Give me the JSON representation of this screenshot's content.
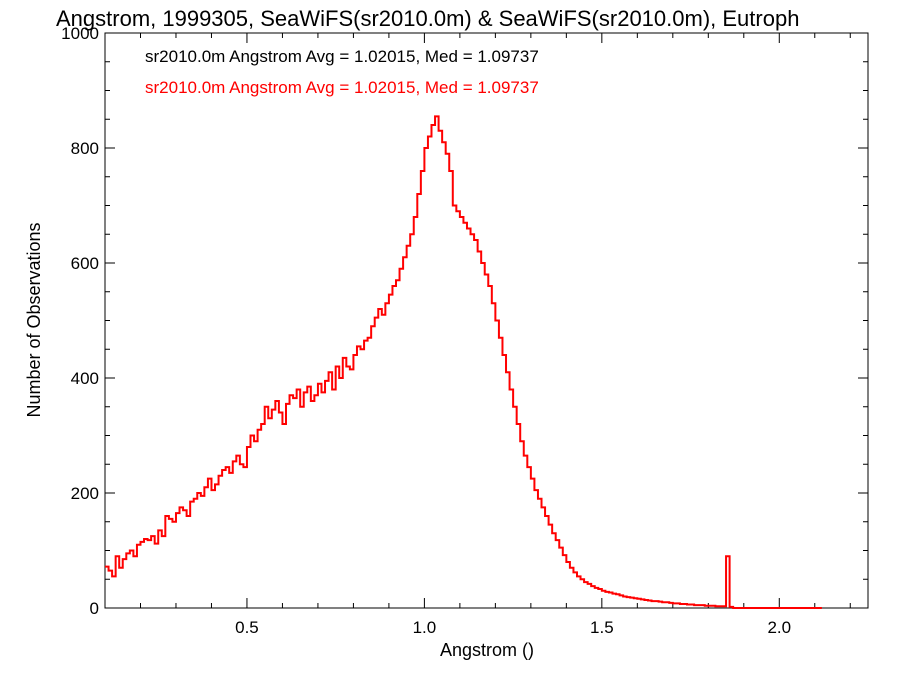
{
  "chart_data": {
    "type": "bar",
    "title": "Angstrom, 1999305, SeaWiFS(sr2010.0m) & SeaWiFS(sr2010.0m), Eutroph",
    "xlabel": "Angstrom ()",
    "ylabel": "Number of Observations",
    "xlim": [
      0.1,
      2.25
    ],
    "ylim": [
      0,
      1000
    ],
    "grid": false,
    "legend_position": "top-left",
    "x_ticks": [
      0.5,
      1.0,
      1.5,
      2.0
    ],
    "x_tick_labels": [
      "0.5",
      "1.0",
      "1.5",
      "2.0"
    ],
    "y_ticks": [
      0,
      200,
      400,
      600,
      800,
      1000
    ],
    "y_tick_labels": [
      "0",
      "200",
      "400",
      "600",
      "800",
      "1000"
    ],
    "bin_start": 0.1,
    "bin_width": 0.01,
    "legend": [
      {
        "text": "sr2010.0m Angstrom Avg = 1.02015, Med = 1.09737",
        "color": "#000000"
      },
      {
        "text": "sr2010.0m Angstrom Avg = 1.02015, Med = 1.09737",
        "color": "#ff0000"
      }
    ],
    "series": [
      {
        "color": "#ff0000",
        "values": [
          72,
          65,
          55,
          90,
          70,
          85,
          95,
          100,
          90,
          110,
          115,
          120,
          118,
          125,
          112,
          135,
          125,
          160,
          155,
          150,
          165,
          175,
          170,
          160,
          185,
          190,
          200,
          195,
          210,
          225,
          205,
          215,
          230,
          240,
          245,
          235,
          255,
          265,
          250,
          245,
          280,
          300,
          290,
          310,
          320,
          350,
          330,
          345,
          360,
          340,
          320,
          355,
          370,
          365,
          380,
          350,
          375,
          385,
          360,
          370,
          390,
          375,
          395,
          410,
          380,
          420,
          400,
          435,
          420,
          415,
          440,
          455,
          450,
          465,
          470,
          490,
          505,
          520,
          510,
          530,
          545,
          560,
          570,
          590,
          610,
          630,
          650,
          680,
          720,
          760,
          800,
          820,
          840,
          855,
          830,
          810,
          790,
          760,
          700,
          690,
          680,
          670,
          660,
          650,
          640,
          620,
          600,
          580,
          560,
          530,
          500,
          470,
          440,
          410,
          380,
          350,
          320,
          290,
          265,
          245,
          225,
          205,
          190,
          175,
          160,
          145,
          130,
          118,
          105,
          92,
          80,
          70,
          62,
          55,
          50,
          45,
          42,
          38,
          35,
          33,
          30,
          28,
          27,
          25,
          24,
          22,
          20,
          19,
          18,
          17,
          16,
          15,
          14,
          13,
          12,
          12,
          11,
          10,
          10,
          9,
          8,
          8,
          7,
          7,
          6,
          6,
          5,
          5,
          5,
          4,
          4,
          4,
          3,
          3,
          3,
          90,
          2,
          0,
          0,
          0,
          0,
          0,
          0,
          0,
          0,
          0,
          0,
          0,
          0,
          0,
          0,
          0,
          0,
          0,
          0,
          0,
          0,
          0,
          0,
          0,
          0,
          0
        ]
      }
    ]
  }
}
